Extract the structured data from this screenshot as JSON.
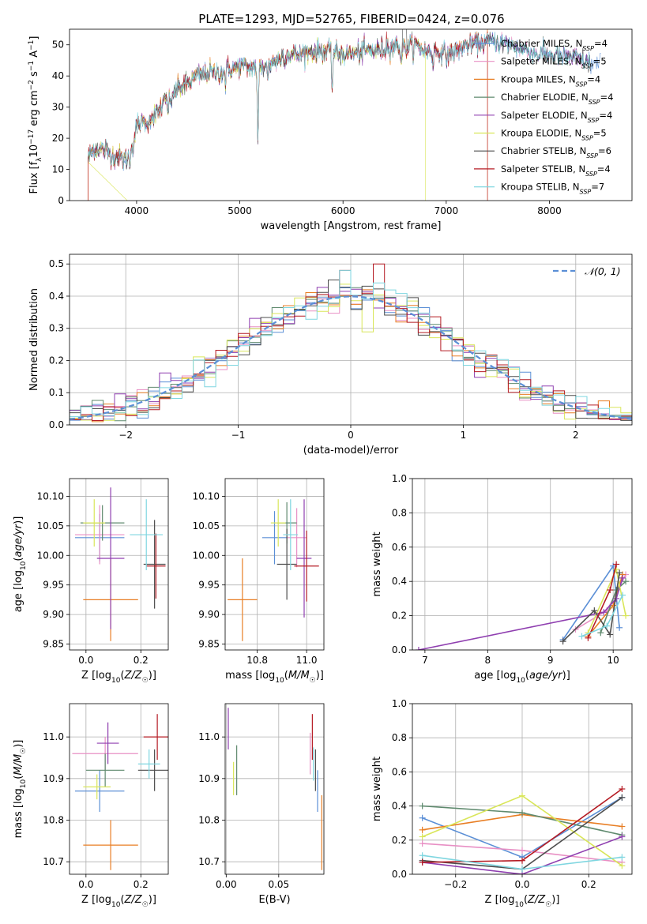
{
  "title": "PLATE=1293, MJD=52765, FIBERID=0424, z=0.076",
  "colors": {
    "Chabrier MILES": "#5b8fd6",
    "Salpeter MILES": "#e88fc4",
    "Kroupa MILES": "#e87e24",
    "Chabrier ELODIE": "#5f8a6e",
    "Salpeter ELODIE": "#8f3fb0",
    "Kroupa ELODIE": "#d9e65a",
    "Chabrier STELIB": "#4d4d4d",
    "Salpeter STELIB": "#b51c24",
    "Kroupa STELIB": "#7fd6e0",
    "normal": "#5b8fd6",
    "grid": "#b0b0b0"
  },
  "chart_data": [
    {
      "id": "spectrum",
      "type": "line",
      "title": "PLATE=1293, MJD=52765, FIBERID=0424, z=0.076",
      "xlabel": "wavelength [Angstrom, rest frame]",
      "ylabel": "Flux [f_λ 10^-17 erg cm^-2 s^-1 A^-1]",
      "xlim": [
        3350,
        8800
      ],
      "ylim": [
        0,
        55
      ],
      "xticks": [
        4000,
        5000,
        6000,
        7000,
        8000
      ],
      "yticks": [
        0,
        10,
        20,
        30,
        40,
        50
      ],
      "legend_position": "top-right",
      "grid": false,
      "series": [
        {
          "name": "Chabrier MILES",
          "nssp": "4"
        },
        {
          "name": "Salpeter MILES",
          "nssp": "5"
        },
        {
          "name": "Kroupa MILES",
          "nssp": "4"
        },
        {
          "name": "Chabrier ELODIE",
          "nssp": "4"
        },
        {
          "name": "Salpeter ELODIE",
          "nssp": "4"
        },
        {
          "name": "Kroupa ELODIE",
          "nssp": "5"
        },
        {
          "name": "Chabrier STELIB",
          "nssp": "6"
        },
        {
          "name": "Salpeter STELIB",
          "nssp": "4"
        },
        {
          "name": "Kroupa STELIB",
          "nssp": "7"
        }
      ],
      "continuum": {
        "x": [
          3530,
          3600,
          3700,
          3800,
          3900,
          3950,
          4000,
          4100,
          4200,
          4300,
          4400,
          4500,
          4600,
          4700,
          4800,
          4900,
          5000,
          5100,
          5200,
          5300,
          5400,
          5500,
          5600,
          5700,
          5800,
          5900,
          6000,
          6100,
          6200,
          6300,
          6400,
          6500,
          6600,
          6700,
          6800,
          6900,
          7000,
          7100,
          7200,
          7300,
          7400,
          7500,
          7600,
          7700,
          7800,
          7900,
          8000,
          8100,
          8200,
          8300,
          8400
        ],
        "y": [
          14,
          17,
          16,
          14,
          13,
          18,
          24,
          26,
          28,
          33,
          36,
          38,
          40,
          41,
          41,
          42,
          43,
          43,
          43,
          44,
          46,
          47,
          47,
          48,
          48,
          48,
          47,
          47,
          48,
          48,
          49,
          50,
          49,
          50,
          48,
          48,
          47,
          48,
          50,
          50,
          51,
          51,
          50,
          49,
          48,
          47,
          47,
          46,
          46,
          45,
          44
        ]
      },
      "absorption_lines": [
        {
          "x": 3934,
          "depth": 6
        },
        {
          "x": 3969,
          "depth": 5
        },
        {
          "x": 4102,
          "depth": 3
        },
        {
          "x": 4305,
          "depth": 6
        },
        {
          "x": 4341,
          "depth": 4
        },
        {
          "x": 4861,
          "depth": 4
        },
        {
          "x": 5175,
          "depth": 26
        },
        {
          "x": 5270,
          "depth": 4
        },
        {
          "x": 5895,
          "depth": 12
        },
        {
          "x": 6563,
          "depth": 5
        },
        {
          "x": 6870,
          "depth": 4
        }
      ],
      "edges": {
        "start": 3530,
        "end": 7400
      }
    },
    {
      "id": "residuals",
      "type": "histogram",
      "xlabel": "(data-model)/error",
      "ylabel": "Normed distribution",
      "xlim": [
        -2.5,
        2.5
      ],
      "ylim": [
        0,
        0.53
      ],
      "xticks": [
        -2,
        -1,
        0,
        1,
        2
      ],
      "yticks": [
        0.0,
        0.1,
        0.2,
        0.3,
        0.4,
        0.5
      ],
      "legend": "𝒩(0, 1)",
      "legend_position": "top-right",
      "bin_width": 0.1,
      "reference_curve": "standard normal",
      "peak_outliers": [
        {
          "x": 0.25,
          "y": 0.5
        },
        {
          "x": -0.05,
          "y": 0.48
        }
      ],
      "grid": true
    },
    {
      "id": "age-vs-Z",
      "type": "scatter",
      "xlabel": "Z [log10(Z/Z☉)]",
      "ylabel": "age [log10(age/yr)]",
      "xlim": [
        -0.06,
        0.3
      ],
      "ylim": [
        9.84,
        10.13
      ],
      "xticks": [
        0.0,
        0.2
      ],
      "yticks": [
        9.85,
        9.9,
        9.95,
        10.0,
        10.05,
        10.1
      ],
      "grid": true,
      "points": [
        {
          "series": "Chabrier MILES",
          "x": 0.05,
          "xerr": 0.09,
          "y": 10.03,
          "yerr": 0.04
        },
        {
          "series": "Salpeter MILES",
          "x": 0.05,
          "xerr": 0.09,
          "y": 10.035,
          "yerr": 0.05
        },
        {
          "series": "Kroupa MILES",
          "x": 0.09,
          "xerr": 0.1,
          "y": 9.925,
          "yerr": 0.07
        },
        {
          "series": "Chabrier ELODIE",
          "x": 0.06,
          "xerr": 0.08,
          "y": 10.055,
          "yerr": 0.03
        },
        {
          "series": "Salpeter ELODIE",
          "x": 0.09,
          "xerr": 0.05,
          "y": 9.995,
          "yerr": 0.12
        },
        {
          "series": "Kroupa ELODIE",
          "x": 0.03,
          "xerr": 0.04,
          "y": 10.055,
          "yerr": 0.04
        },
        {
          "series": "Chabrier STELIB",
          "x": 0.25,
          "xerr": 0.04,
          "y": 9.985,
          "yerr": 0.075
        },
        {
          "series": "Salpeter STELIB",
          "x": 0.255,
          "xerr": 0.035,
          "y": 9.982,
          "yerr": 0.055
        },
        {
          "series": "Kroupa STELIB",
          "x": 0.22,
          "xerr": 0.06,
          "y": 10.035,
          "yerr": 0.06
        }
      ]
    },
    {
      "id": "age-vs-mass",
      "type": "scatter",
      "xlabel": "mass [log10(M/M☉)]",
      "ylabel": "",
      "xlim": [
        10.67,
        11.07
      ],
      "ylim": [
        9.84,
        10.13
      ],
      "xticks": [
        10.8,
        11.0
      ],
      "yticks": [
        9.85,
        9.9,
        9.95,
        10.0,
        10.05,
        10.1
      ],
      "grid": true,
      "points": [
        {
          "series": "Chabrier MILES",
          "x": 10.87,
          "xerr": 0.05,
          "y": 10.03,
          "yerr": 0.045
        },
        {
          "series": "Salpeter MILES",
          "x": 10.96,
          "xerr": 0.04,
          "y": 10.03,
          "yerr": 0.05
        },
        {
          "series": "Kroupa MILES",
          "x": 10.74,
          "xerr": 0.06,
          "y": 9.925,
          "yerr": 0.07
        },
        {
          "series": "Chabrier ELODIE",
          "x": 10.92,
          "xerr": 0.04,
          "y": 10.055,
          "yerr": 0.035
        },
        {
          "series": "Salpeter ELODIE",
          "x": 10.99,
          "xerr": 0.03,
          "y": 9.995,
          "yerr": 0.1
        },
        {
          "series": "Kroupa ELODIE",
          "x": 10.885,
          "xerr": 0.03,
          "y": 10.055,
          "yerr": 0.04
        },
        {
          "series": "Chabrier STELIB",
          "x": 10.92,
          "xerr": 0.04,
          "y": 9.985,
          "yerr": 0.06
        },
        {
          "series": "Salpeter STELIB",
          "x": 11.0,
          "xerr": 0.05,
          "y": 9.982,
          "yerr": 0.06
        },
        {
          "series": "Kroupa STELIB",
          "x": 10.935,
          "xerr": 0.03,
          "y": 10.035,
          "yerr": 0.06
        }
      ]
    },
    {
      "id": "weight-vs-age",
      "type": "line",
      "xlabel": "age [log10(age/yr)]",
      "ylabel": "mass weight",
      "xlim": [
        6.8,
        10.3
      ],
      "ylim": [
        0,
        1
      ],
      "xticks": [
        7,
        8,
        9,
        10
      ],
      "yticks": [
        0.0,
        0.2,
        0.4,
        0.6,
        0.8,
        1.0
      ],
      "grid": true,
      "series": [
        {
          "name": "Chabrier MILES",
          "x": [
            9.2,
            10.0,
            10.1
          ],
          "y": [
            0.06,
            0.49,
            0.13
          ]
        },
        {
          "name": "Salpeter MILES",
          "x": [
            9.4,
            9.9,
            10.2
          ],
          "y": [
            0.12,
            0.23,
            0.44
          ]
        },
        {
          "name": "Kroupa MILES",
          "x": [
            9.6,
            10.0,
            10.15
          ],
          "y": [
            0.08,
            0.26,
            0.44
          ]
        },
        {
          "name": "Chabrier ELODIE",
          "x": [
            9.8,
            10.05,
            10.2
          ],
          "y": [
            0.1,
            0.35,
            0.4
          ]
        },
        {
          "name": "Salpeter ELODIE",
          "x": [
            6.9,
            9.85,
            10.05,
            10.15
          ],
          "y": [
            0.0,
            0.22,
            0.3,
            0.42
          ]
        },
        {
          "name": "Kroupa ELODIE",
          "x": [
            9.6,
            10.05,
            10.2
          ],
          "y": [
            0.1,
            0.47,
            0.2
          ]
        },
        {
          "name": "Chabrier STELIB",
          "x": [
            9.2,
            9.7,
            9.95,
            10.1
          ],
          "y": [
            0.05,
            0.23,
            0.09,
            0.45
          ]
        },
        {
          "name": "Salpeter STELIB",
          "x": [
            9.6,
            9.95,
            10.05
          ],
          "y": [
            0.07,
            0.35,
            0.5
          ]
        },
        {
          "name": "Kroupa STELIB",
          "x": [
            9.5,
            9.9,
            10.15
          ],
          "y": [
            0.08,
            0.14,
            0.32
          ]
        }
      ]
    },
    {
      "id": "mass-vs-Z",
      "type": "scatter",
      "xlabel": "Z [log10(Z/Z☉)]",
      "ylabel": "mass [log10(M/M☉)]",
      "xlim": [
        -0.06,
        0.3
      ],
      "ylim": [
        10.67,
        11.08
      ],
      "xticks": [
        0.0,
        0.2
      ],
      "yticks": [
        10.7,
        10.8,
        10.9,
        11.0
      ],
      "grid": true,
      "points": [
        {
          "series": "Chabrier MILES",
          "x": 0.05,
          "xerr": 0.09,
          "y": 10.87,
          "yerr": 0.05
        },
        {
          "series": "Salpeter MILES",
          "x": 0.07,
          "xerr": 0.12,
          "y": 10.96,
          "yerr": 0.04
        },
        {
          "series": "Kroupa MILES",
          "x": 0.09,
          "xerr": 0.1,
          "y": 10.74,
          "yerr": 0.06
        },
        {
          "series": "Chabrier ELODIE",
          "x": 0.07,
          "xerr": 0.07,
          "y": 10.92,
          "yerr": 0.04
        },
        {
          "series": "Salpeter ELODIE",
          "x": 0.08,
          "xerr": 0.04,
          "y": 10.985,
          "yerr": 0.05
        },
        {
          "series": "Kroupa ELODIE",
          "x": 0.04,
          "xerr": 0.05,
          "y": 10.88,
          "yerr": 0.03
        },
        {
          "series": "Chabrier STELIB",
          "x": 0.25,
          "xerr": 0.06,
          "y": 10.92,
          "yerr": 0.05
        },
        {
          "series": "Salpeter STELIB",
          "x": 0.26,
          "xerr": 0.05,
          "y": 11.0,
          "yerr": 0.055
        },
        {
          "series": "Kroupa STELIB",
          "x": 0.23,
          "xerr": 0.04,
          "y": 10.935,
          "yerr": 0.035
        }
      ]
    },
    {
      "id": "mass-vs-EBV",
      "type": "scatter",
      "xlabel": "E(B-V)",
      "ylabel": "",
      "xlim": [
        -0.001,
        0.093
      ],
      "ylim": [
        10.67,
        11.08
      ],
      "xticks": [
        0.0,
        0.05
      ],
      "yticks": [
        10.7,
        10.8,
        10.9,
        11.0
      ],
      "grid": true,
      "points": [
        {
          "series": "Chabrier MILES",
          "x": 0.087,
          "y": 10.87,
          "yerr": 0.05
        },
        {
          "series": "Salpeter MILES",
          "x": 0.08,
          "y": 10.96,
          "yerr": 0.05
        },
        {
          "series": "Kroupa MILES",
          "x": 0.091,
          "y": 10.77,
          "yerr": 0.09
        },
        {
          "series": "Chabrier ELODIE",
          "x": 0.01,
          "y": 10.92,
          "yerr": 0.06
        },
        {
          "series": "Salpeter ELODIE",
          "x": 0.002,
          "y": 11.02,
          "yerr": 0.05
        },
        {
          "series": "Kroupa ELODIE",
          "x": 0.007,
          "y": 10.9,
          "yerr": 0.04
        },
        {
          "series": "Chabrier STELIB",
          "x": 0.085,
          "y": 10.92,
          "yerr": 0.05
        },
        {
          "series": "Salpeter STELIB",
          "x": 0.082,
          "y": 11.0,
          "yerr": 0.055
        },
        {
          "series": "Kroupa STELIB",
          "x": 0.083,
          "y": 10.935,
          "yerr": 0.04
        }
      ]
    },
    {
      "id": "weight-vs-Z",
      "type": "line",
      "xlabel": "Z [log10(Z/Z☉)]",
      "ylabel": "mass weight",
      "xlim": [
        -0.33,
        0.33
      ],
      "ylim": [
        0,
        1
      ],
      "xticks": [
        -0.2,
        0.0,
        0.2
      ],
      "yticks": [
        0.0,
        0.2,
        0.4,
        0.6,
        0.8,
        1.0
      ],
      "grid": true,
      "series": [
        {
          "name": "Chabrier MILES",
          "x": [
            -0.3,
            0.0,
            0.3
          ],
          "y": [
            0.33,
            0.1,
            0.45
          ]
        },
        {
          "name": "Salpeter MILES",
          "x": [
            -0.3,
            0.0,
            0.3
          ],
          "y": [
            0.18,
            0.14,
            0.07
          ]
        },
        {
          "name": "Kroupa MILES",
          "x": [
            -0.3,
            0.0,
            0.3
          ],
          "y": [
            0.26,
            0.35,
            0.28
          ]
        },
        {
          "name": "Chabrier ELODIE",
          "x": [
            -0.3,
            0.0,
            0.3
          ],
          "y": [
            0.4,
            0.36,
            0.23
          ]
        },
        {
          "name": "Salpeter ELODIE",
          "x": [
            -0.3,
            0.0,
            0.3
          ],
          "y": [
            0.07,
            0.0,
            0.22
          ]
        },
        {
          "name": "Kroupa ELODIE",
          "x": [
            -0.3,
            0.0,
            0.3
          ],
          "y": [
            0.22,
            0.46,
            0.05
          ]
        },
        {
          "name": "Chabrier STELIB",
          "x": [
            -0.3,
            0.0,
            0.3
          ],
          "y": [
            0.08,
            0.03,
            0.45
          ]
        },
        {
          "name": "Salpeter STELIB",
          "x": [
            -0.3,
            0.0,
            0.3
          ],
          "y": [
            0.07,
            0.08,
            0.5
          ]
        },
        {
          "name": "Kroupa STELIB",
          "x": [
            -0.3,
            0.0,
            0.3
          ],
          "y": [
            0.11,
            0.03,
            0.1
          ]
        }
      ]
    }
  ]
}
